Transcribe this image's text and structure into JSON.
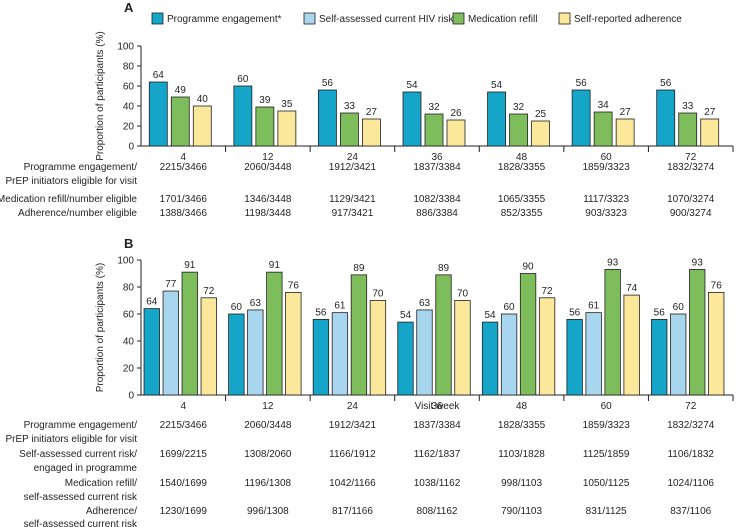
{
  "colors": {
    "programme": "#14a5c9",
    "hivrisk": "#a8d6ef",
    "refill": "#7dbd5c",
    "adherence": "#fbe89a",
    "axis": "#231f20"
  },
  "legend": [
    {
      "key": "programme",
      "label": "Programme engagement*"
    },
    {
      "key": "hivrisk",
      "label": "Self-assessed current HIV risk†"
    },
    {
      "key": "refill",
      "label": "Medication refill"
    },
    {
      "key": "adherence",
      "label": "Self-reported adherence"
    }
  ],
  "chart_data": [
    {
      "panel": "A",
      "type": "bar",
      "ylabel": "Proportion of participants (%)",
      "xlabel": "",
      "ylim": [
        0,
        100
      ],
      "yticks": [
        0,
        20,
        40,
        60,
        80,
        100
      ],
      "categories": [
        "4",
        "12",
        "24",
        "36",
        "48",
        "60",
        "72"
      ],
      "series": [
        {
          "name": "Programme engagement",
          "key": "programme",
          "values": [
            64,
            60,
            56,
            54,
            54,
            56,
            56
          ]
        },
        {
          "name": "Medication refill",
          "key": "refill",
          "values": [
            49,
            39,
            33,
            32,
            32,
            34,
            33
          ]
        },
        {
          "name": "Self-reported adherence",
          "key": "adherence",
          "values": [
            40,
            35,
            27,
            26,
            25,
            27,
            27
          ]
        }
      ],
      "table": [
        {
          "label": [
            "Programme engagement/",
            "PrEP initiators eligible for visit"
          ],
          "values": [
            "2215/3466",
            "2060/3448",
            "1912/3421",
            "1837/3384",
            "1828/3355",
            "1859/3323",
            "1832/3274"
          ]
        },
        {
          "label": [
            "Medication refill/number eligible"
          ],
          "values": [
            "1701/3466",
            "1346/3448",
            "1129/3421",
            "1082/3384",
            "1065/3355",
            "1117/3323",
            "1070/3274"
          ]
        },
        {
          "label": [
            "Adherence/number eligible"
          ],
          "values": [
            "1388/3466",
            "1198/3448",
            "917/3421",
            "886/3384",
            "852/3355",
            "903/3323",
            "900/3274"
          ]
        }
      ]
    },
    {
      "panel": "B",
      "type": "bar",
      "ylabel": "Proportion of participants (%)",
      "xlabel": "Visit week",
      "ylim": [
        0,
        100
      ],
      "yticks": [
        0,
        20,
        40,
        60,
        80,
        100
      ],
      "categories": [
        "4",
        "12",
        "24",
        "36",
        "48",
        "60",
        "72"
      ],
      "series": [
        {
          "name": "Programme engagement",
          "key": "programme",
          "values": [
            64,
            60,
            56,
            54,
            54,
            56,
            56
          ]
        },
        {
          "name": "Self-assessed current HIV risk",
          "key": "hivrisk",
          "values": [
            77,
            63,
            61,
            63,
            60,
            61,
            60
          ]
        },
        {
          "name": "Medication refill",
          "key": "refill",
          "values": [
            91,
            91,
            89,
            89,
            90,
            93,
            93
          ]
        },
        {
          "name": "Self-reported adherence",
          "key": "adherence",
          "values": [
            72,
            76,
            70,
            70,
            72,
            74,
            76
          ]
        }
      ],
      "table": [
        {
          "label": [
            "Programme engagement/",
            "PrEP initiators eligible for visit"
          ],
          "values": [
            "2215/3466",
            "2060/3448",
            "1912/3421",
            "1837/3384",
            "1828/3355",
            "1859/3323",
            "1832/3274"
          ]
        },
        {
          "label": [
            "Self-assessed current risk/",
            "engaged in programme"
          ],
          "values": [
            "1699/2215",
            "1308/2060",
            "1166/1912",
            "1162/1837",
            "1103/1828",
            "1125/1859",
            "1106/1832"
          ]
        },
        {
          "label": [
            "Medication refill/",
            "self-assessed current risk"
          ],
          "values": [
            "1540/1699",
            "1196/1308",
            "1042/1166",
            "1038/1162",
            "998/1103",
            "1050/1125",
            "1024/1106"
          ]
        },
        {
          "label": [
            "Adherence/",
            "self-assessed current risk"
          ],
          "values": [
            "1230/1699",
            "996/1308",
            "817/1166",
            "808/1162",
            "790/1103",
            "831/1125",
            "837/1106"
          ]
        }
      ]
    }
  ]
}
